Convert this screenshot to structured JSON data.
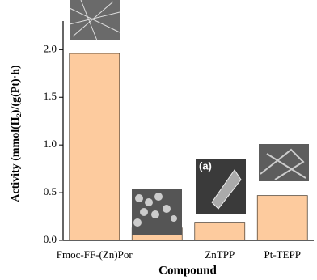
{
  "chart_data": {
    "type": "bar",
    "y_label": "Activity (mmol(H₂)/(g(Pt)·h)",
    "x_label": "Compound",
    "categories": [
      "Fmoc-FF-(Zn)Por",
      null,
      "ZnTPP",
      "Pt-TEPP"
    ],
    "values": [
      1.96,
      0.13,
      0.19,
      0.47
    ],
    "color": "#fdcb9e",
    "edge_color": "#5a4a3a",
    "ylim": [
      0,
      2.3
    ],
    "yticks": [
      {
        "value": 0,
        "label": "0.0"
      },
      {
        "value": 0.5,
        "label": "0.5"
      },
      {
        "value": 1,
        "label": "1.0"
      },
      {
        "value": 1.5,
        "label": "1.5"
      },
      {
        "value": 2,
        "label": "2.0"
      }
    ],
    "annotations": [
      "(a)"
    ]
  }
}
